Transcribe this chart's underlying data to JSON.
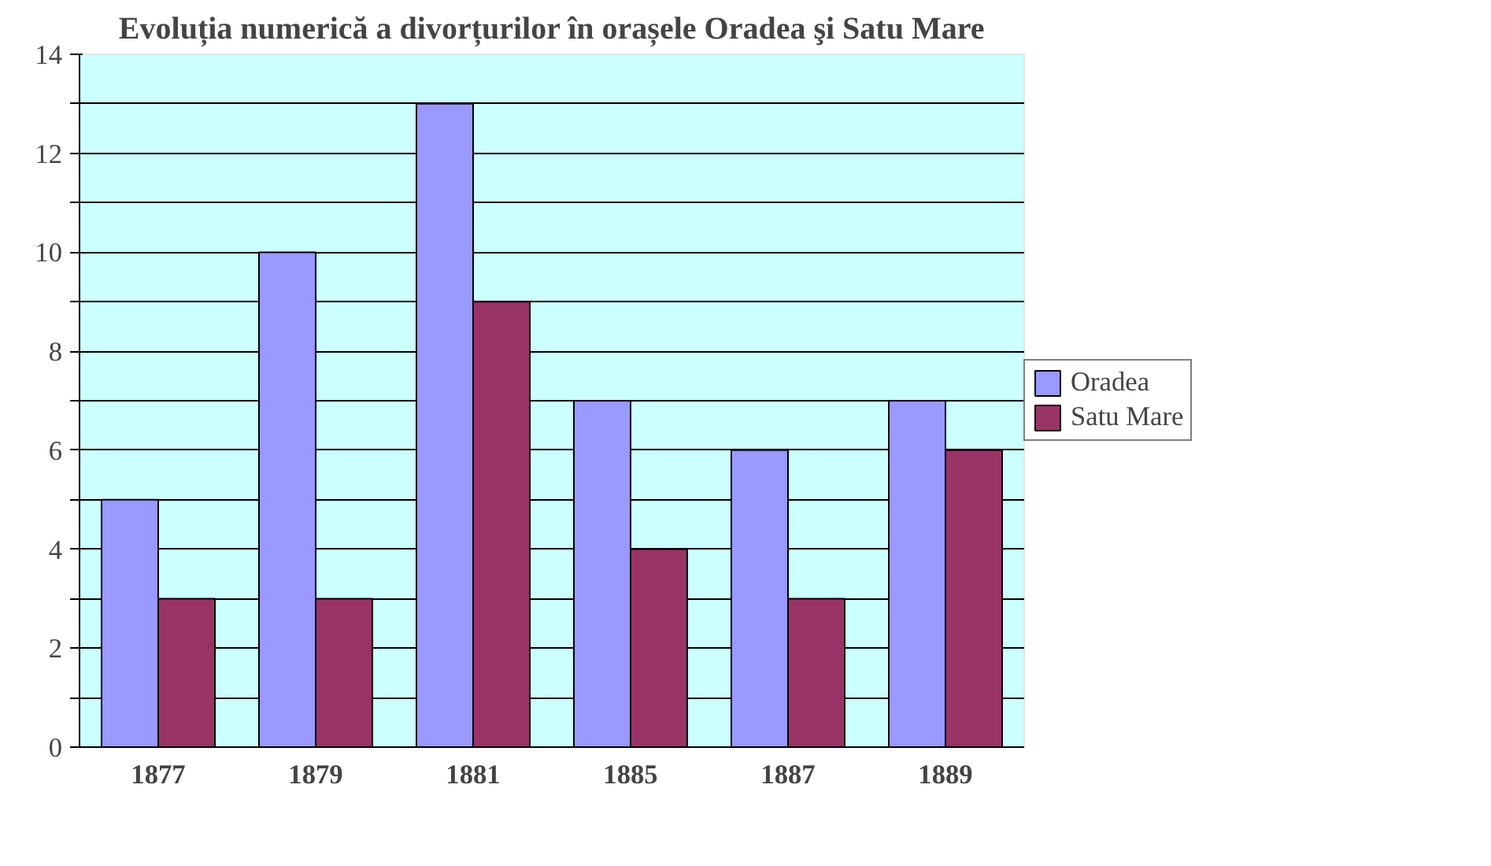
{
  "chart_data": {
    "type": "bar",
    "title": "Evoluția numerică a divorțurilor în orașele Oradea şi Satu Mare",
    "categories": [
      "1877",
      "1879",
      "1881",
      "1885",
      "1887",
      "1889"
    ],
    "series": [
      {
        "name": "Oradea",
        "color": "#9999ff",
        "values": [
          5,
          10,
          13,
          7,
          6,
          7
        ]
      },
      {
        "name": "Satu Mare",
        "color": "#993366",
        "values": [
          3,
          3,
          9,
          4,
          3,
          6
        ]
      }
    ],
    "ylim": [
      0,
      14
    ],
    "yticks": [
      0,
      {
        "value": 1,
        "label": null
      },
      2,
      {
        "value": 3,
        "label": null
      },
      4,
      {
        "value": 5,
        "label": null
      },
      6,
      {
        "value": 7,
        "label": null
      },
      8,
      {
        "value": 9,
        "label": null
      },
      10,
      {
        "value": 11,
        "label": null
      },
      12,
      {
        "value": 13,
        "label": null
      },
      14
    ],
    "grid": "y",
    "legend": "right"
  }
}
